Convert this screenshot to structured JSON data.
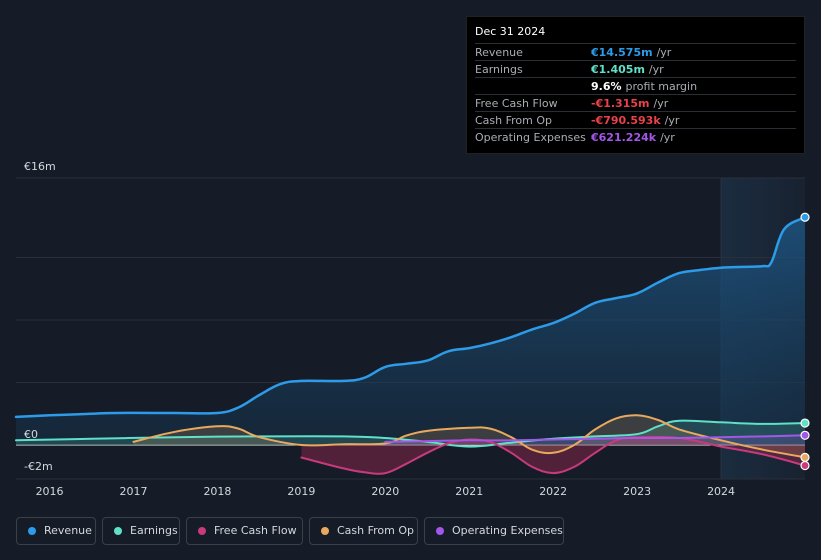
{
  "tooltip": {
    "date": "Dec 31 2024",
    "rows": [
      {
        "label": "Revenue",
        "value": "€14.575m",
        "unit": "/yr",
        "color": "#2d9be8"
      },
      {
        "label": "Earnings",
        "value": "€1.405m",
        "unit": "/yr",
        "color": "#5fe0c8"
      },
      {
        "label": "",
        "value": "9.6%",
        "unit": "profit margin",
        "color": "#ffffff"
      },
      {
        "label": "Free Cash Flow",
        "value": "-€1.315m",
        "unit": "/yr",
        "color": "#e8424a"
      },
      {
        "label": "Cash From Op",
        "value": "-€790.593k",
        "unit": "/yr",
        "color": "#e8424a"
      },
      {
        "label": "Operating Expenses",
        "value": "€621.224k",
        "unit": "/yr",
        "color": "#a257e8"
      }
    ]
  },
  "chart_data": {
    "type": "area",
    "y_labels": {
      "top": "€16m",
      "zero": "€0",
      "bottom": "-€2m"
    },
    "ylim": [
      -2,
      16
    ],
    "xlim": [
      2015.6,
      2025.0
    ],
    "highlight_start": 2024.0,
    "x_ticks": [
      "2016",
      "2017",
      "2018",
      "2019",
      "2020",
      "2021",
      "2022",
      "2023",
      "2024"
    ],
    "series": [
      {
        "name": "Revenue",
        "color": "#2d9be8",
        "points": [
          [
            2015.6,
            1.8
          ],
          [
            2016.0,
            1.9
          ],
          [
            2016.5,
            2.0
          ],
          [
            2016.8,
            2.05
          ],
          [
            2017.5,
            2.05
          ],
          [
            2018.0,
            2.05
          ],
          [
            2018.25,
            2.4
          ],
          [
            2018.5,
            3.2
          ],
          [
            2018.75,
            3.9
          ],
          [
            2019.0,
            4.1
          ],
          [
            2019.5,
            4.1
          ],
          [
            2019.75,
            4.3
          ],
          [
            2020.0,
            5.0
          ],
          [
            2020.25,
            5.2
          ],
          [
            2020.5,
            5.4
          ],
          [
            2020.75,
            6.0
          ],
          [
            2021.0,
            6.2
          ],
          [
            2021.25,
            6.5
          ],
          [
            2021.5,
            6.9
          ],
          [
            2021.75,
            7.4
          ],
          [
            2022.0,
            7.8
          ],
          [
            2022.25,
            8.4
          ],
          [
            2022.5,
            9.1
          ],
          [
            2022.75,
            9.4
          ],
          [
            2023.0,
            9.7
          ],
          [
            2023.25,
            10.4
          ],
          [
            2023.5,
            11.0
          ],
          [
            2023.75,
            11.2
          ],
          [
            2024.0,
            11.35
          ],
          [
            2024.25,
            11.4
          ],
          [
            2024.5,
            11.45
          ],
          [
            2024.6,
            11.7
          ],
          [
            2024.75,
            13.8
          ],
          [
            2025.0,
            14.575
          ]
        ]
      },
      {
        "name": "Earnings",
        "color": "#5fe0c8",
        "points": [
          [
            2015.6,
            0.3
          ],
          [
            2016.5,
            0.4
          ],
          [
            2017.5,
            0.5
          ],
          [
            2018.5,
            0.55
          ],
          [
            2019.5,
            0.55
          ],
          [
            2020.0,
            0.45
          ],
          [
            2020.5,
            0.2
          ],
          [
            2021.0,
            -0.1
          ],
          [
            2021.5,
            0.15
          ],
          [
            2022.0,
            0.4
          ],
          [
            2022.5,
            0.55
          ],
          [
            2023.0,
            0.7
          ],
          [
            2023.25,
            1.2
          ],
          [
            2023.5,
            1.55
          ],
          [
            2024.0,
            1.45
          ],
          [
            2024.5,
            1.35
          ],
          [
            2025.0,
            1.405
          ]
        ]
      },
      {
        "name": "Free Cash Flow",
        "color": "#c93a7d",
        "points": [
          [
            2019.0,
            -0.8
          ],
          [
            2019.5,
            -1.5
          ],
          [
            2019.75,
            -1.75
          ],
          [
            2020.0,
            -1.8
          ],
          [
            2020.25,
            -1.2
          ],
          [
            2020.5,
            -0.5
          ],
          [
            2020.75,
            0.1
          ],
          [
            2021.0,
            0.35
          ],
          [
            2021.25,
            0.2
          ],
          [
            2021.5,
            -0.5
          ],
          [
            2021.75,
            -1.4
          ],
          [
            2022.0,
            -1.8
          ],
          [
            2022.25,
            -1.4
          ],
          [
            2022.5,
            -0.5
          ],
          [
            2022.75,
            0.3
          ],
          [
            2023.0,
            0.5
          ],
          [
            2023.5,
            0.45
          ],
          [
            2024.0,
            -0.1
          ],
          [
            2024.5,
            -0.6
          ],
          [
            2025.0,
            -1.315
          ]
        ]
      },
      {
        "name": "Cash From Op",
        "color": "#e8a95f",
        "points": [
          [
            2017.0,
            0.2
          ],
          [
            2017.5,
            0.85
          ],
          [
            2018.0,
            1.2
          ],
          [
            2018.25,
            1.05
          ],
          [
            2018.5,
            0.5
          ],
          [
            2019.0,
            0.0
          ],
          [
            2019.5,
            0.05
          ],
          [
            2020.0,
            0.1
          ],
          [
            2020.25,
            0.6
          ],
          [
            2020.5,
            0.9
          ],
          [
            2021.0,
            1.1
          ],
          [
            2021.25,
            1.05
          ],
          [
            2021.5,
            0.5
          ],
          [
            2021.75,
            -0.3
          ],
          [
            2022.0,
            -0.5
          ],
          [
            2022.25,
            0.0
          ],
          [
            2022.5,
            1.0
          ],
          [
            2022.75,
            1.7
          ],
          [
            2023.0,
            1.9
          ],
          [
            2023.25,
            1.6
          ],
          [
            2023.5,
            1.0
          ],
          [
            2024.0,
            0.3
          ],
          [
            2024.5,
            -0.3
          ],
          [
            2025.0,
            -0.79
          ]
        ]
      },
      {
        "name": "Operating Expenses",
        "color": "#a257e8",
        "points": [
          [
            2020.0,
            0.2
          ],
          [
            2020.5,
            0.25
          ],
          [
            2021.0,
            0.3
          ],
          [
            2021.5,
            0.3
          ],
          [
            2022.0,
            0.35
          ],
          [
            2022.5,
            0.4
          ],
          [
            2023.0,
            0.45
          ],
          [
            2023.5,
            0.45
          ],
          [
            2024.0,
            0.5
          ],
          [
            2024.5,
            0.55
          ],
          [
            2025.0,
            0.621
          ]
        ]
      }
    ]
  },
  "legend": [
    {
      "label": "Revenue",
      "color": "#2d9be8"
    },
    {
      "label": "Earnings",
      "color": "#5fe0c8"
    },
    {
      "label": "Free Cash Flow",
      "color": "#c93a7d"
    },
    {
      "label": "Cash From Op",
      "color": "#e8a95f"
    },
    {
      "label": "Operating Expenses",
      "color": "#a257e8"
    }
  ]
}
